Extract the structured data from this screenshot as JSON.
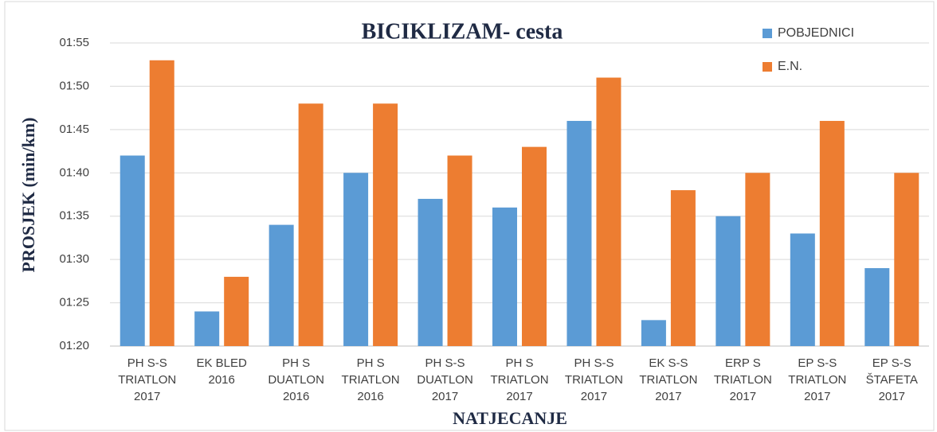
{
  "chart_data": {
    "type": "bar",
    "title": "BICIKLIZAM- cesta",
    "x_label": "NATJECANJE",
    "y_label": "PROSJEK (min/km)",
    "categories": [
      [
        "PH S-S",
        "TRIATLON",
        "2017"
      ],
      [
        "EK BLED",
        "2016"
      ],
      [
        "PH S",
        "DUATLON",
        "2016"
      ],
      [
        "PH S",
        "TRIATLON",
        "2016"
      ],
      [
        "PH S-S",
        "DUATLON",
        "2017"
      ],
      [
        "PH S",
        "TRIATLON",
        "2017"
      ],
      [
        "PH S-S",
        "TRIATLON",
        "2017"
      ],
      [
        "EK S-S",
        "TRIATLON",
        "2017"
      ],
      [
        "ERP S",
        "TRIATLON",
        "2017"
      ],
      [
        "EP S-S",
        "TRIATLON",
        "2017"
      ],
      [
        "EP S-S",
        "ŠTAFETA",
        "2017"
      ]
    ],
    "series": [
      {
        "name": "POBJEDNICI",
        "color": "#5b9bd5",
        "values": [
          102,
          84,
          94,
          100,
          97,
          96,
          106,
          83,
          95,
          93,
          89
        ]
      },
      {
        "name": "E.N.",
        "color": "#ed7d31",
        "values": [
          113,
          88,
          108,
          108,
          102,
          103,
          111,
          98,
          100,
          106,
          100
        ]
      }
    ],
    "ylim": [
      80,
      115
    ],
    "yticks": [
      {
        "value": 80,
        "label": "01:20"
      },
      {
        "value": 85,
        "label": "01:25"
      },
      {
        "value": 90,
        "label": "01:30"
      },
      {
        "value": 95,
        "label": "01:35"
      },
      {
        "value": 100,
        "label": "01:40"
      },
      {
        "value": 105,
        "label": "01:45"
      },
      {
        "value": 110,
        "label": "01:50"
      },
      {
        "value": 115,
        "label": "01:55"
      }
    ],
    "grid": true,
    "legend": "top-right"
  }
}
